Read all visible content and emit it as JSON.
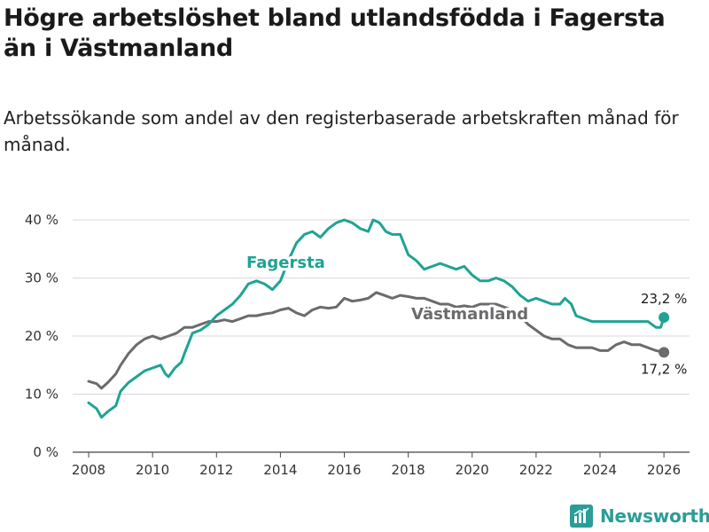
{
  "title": "Högre arbetslöshet bland utlandsfödda i Fagersta än i Västmanland",
  "subtitle": "Arbetssökande som andel av den registerbaserade arbetskraften månad för månad.",
  "brand": {
    "name": "Newsworthy",
    "color": "#2a9d96"
  },
  "chart_data": {
    "type": "line",
    "title": "Högre arbetslöshet bland utlandsfödda i Fagersta än i Västmanland",
    "xlabel": "",
    "ylabel": "",
    "xlim": [
      2007.5,
      2026.8
    ],
    "ylim": [
      0,
      40
    ],
    "grid": true,
    "x_ticks": [
      2008,
      2010,
      2012,
      2014,
      2016,
      2018,
      2020,
      2022,
      2024,
      2026
    ],
    "x_tick_labels": [
      "2008",
      "2010",
      "2012",
      "2014",
      "2016",
      "2018",
      "2020",
      "2022",
      "2024",
      "2026"
    ],
    "y_ticks": [
      0,
      10,
      20,
      30,
      40
    ],
    "y_tick_labels": [
      "0 %",
      "10 %",
      "20 %",
      "30 %",
      "40 %"
    ],
    "series": [
      {
        "name": "Fagersta",
        "color": "#1fa394",
        "end_label": "23,2 %",
        "x": [
          2008.0,
          2008.25,
          2008.4,
          2008.6,
          2008.85,
          2009.0,
          2009.25,
          2009.5,
          2009.75,
          2010.0,
          2010.25,
          2010.4,
          2010.5,
          2010.7,
          2010.9,
          2011.0,
          2011.25,
          2011.5,
          2011.75,
          2012.0,
          2012.25,
          2012.5,
          2012.75,
          2013.0,
          2013.25,
          2013.5,
          2013.75,
          2014.0,
          2014.25,
          2014.5,
          2014.75,
          2015.0,
          2015.25,
          2015.5,
          2015.75,
          2016.0,
          2016.25,
          2016.5,
          2016.75,
          2016.9,
          2017.1,
          2017.3,
          2017.5,
          2017.75,
          2018.0,
          2018.25,
          2018.5,
          2018.75,
          2019.0,
          2019.25,
          2019.5,
          2019.75,
          2020.0,
          2020.25,
          2020.5,
          2020.75,
          2021.0,
          2021.25,
          2021.5,
          2021.75,
          2022.0,
          2022.25,
          2022.5,
          2022.75,
          2022.9,
          2023.1,
          2023.25,
          2023.5,
          2023.75,
          2024.0,
          2024.25,
          2024.5,
          2024.75,
          2025.0,
          2025.25,
          2025.5,
          2025.75,
          2025.9,
          2026.0
        ],
        "y": [
          8.5,
          7.5,
          6.0,
          7.0,
          8.0,
          10.5,
          12.0,
          13.0,
          14.0,
          14.5,
          15.0,
          13.5,
          13.0,
          14.5,
          15.5,
          17.0,
          20.5,
          21.0,
          22.0,
          23.5,
          24.5,
          25.5,
          27.0,
          29.0,
          29.5,
          29.0,
          28.0,
          29.5,
          33.0,
          36.0,
          37.5,
          38.0,
          37.0,
          38.5,
          39.5,
          40.0,
          39.5,
          38.5,
          38.0,
          40.0,
          39.5,
          38.0,
          37.5,
          37.5,
          34.0,
          33.0,
          31.5,
          32.0,
          32.5,
          32.0,
          31.5,
          32.0,
          30.5,
          29.5,
          29.5,
          30.0,
          29.5,
          28.5,
          27.0,
          26.0,
          26.5,
          26.0,
          25.5,
          25.5,
          26.5,
          25.5,
          23.5,
          23.0,
          22.5,
          22.5,
          22.5,
          22.5,
          22.5,
          22.5,
          22.5,
          22.5,
          21.5,
          21.5,
          23.2
        ]
      },
      {
        "name": "Västmanland",
        "color": "#6b6b6e",
        "end_label": "17,2 %",
        "x": [
          2008.0,
          2008.25,
          2008.4,
          2008.6,
          2008.85,
          2009.0,
          2009.25,
          2009.5,
          2009.75,
          2010.0,
          2010.25,
          2010.5,
          2010.75,
          2011.0,
          2011.25,
          2011.5,
          2011.75,
          2012.0,
          2012.25,
          2012.5,
          2012.75,
          2013.0,
          2013.25,
          2013.5,
          2013.75,
          2014.0,
          2014.25,
          2014.5,
          2014.75,
          2015.0,
          2015.25,
          2015.5,
          2015.75,
          2016.0,
          2016.25,
          2016.5,
          2016.75,
          2017.0,
          2017.25,
          2017.5,
          2017.75,
          2018.0,
          2018.25,
          2018.5,
          2018.75,
          2019.0,
          2019.25,
          2019.5,
          2019.75,
          2020.0,
          2020.25,
          2020.5,
          2020.75,
          2021.0,
          2021.25,
          2021.5,
          2021.75,
          2022.0,
          2022.25,
          2022.5,
          2022.75,
          2023.0,
          2023.25,
          2023.5,
          2023.75,
          2024.0,
          2024.25,
          2024.5,
          2024.75,
          2025.0,
          2025.25,
          2025.5,
          2025.75,
          2026.0
        ],
        "y": [
          12.2,
          11.8,
          11.0,
          12.0,
          13.5,
          15.0,
          17.0,
          18.5,
          19.5,
          20.0,
          19.5,
          20.0,
          20.5,
          21.5,
          21.5,
          22.0,
          22.5,
          22.5,
          22.8,
          22.5,
          23.0,
          23.5,
          23.5,
          23.8,
          24.0,
          24.5,
          24.8,
          24.0,
          23.5,
          24.5,
          25.0,
          24.8,
          25.0,
          26.5,
          26.0,
          26.2,
          26.5,
          27.5,
          27.0,
          26.5,
          27.0,
          26.8,
          26.5,
          26.5,
          26.0,
          25.5,
          25.5,
          25.0,
          25.2,
          25.0,
          25.5,
          25.5,
          25.5,
          25.0,
          24.5,
          23.5,
          22.0,
          21.0,
          20.0,
          19.5,
          19.5,
          18.5,
          18.0,
          18.0,
          18.0,
          17.5,
          17.5,
          18.5,
          19.0,
          18.5,
          18.5,
          18.0,
          17.5,
          17.2
        ]
      }
    ],
    "annotations": [
      {
        "text": "Fagersta",
        "series": "Fagersta"
      },
      {
        "text": "Västmanland",
        "series": "Västmanland"
      }
    ]
  }
}
